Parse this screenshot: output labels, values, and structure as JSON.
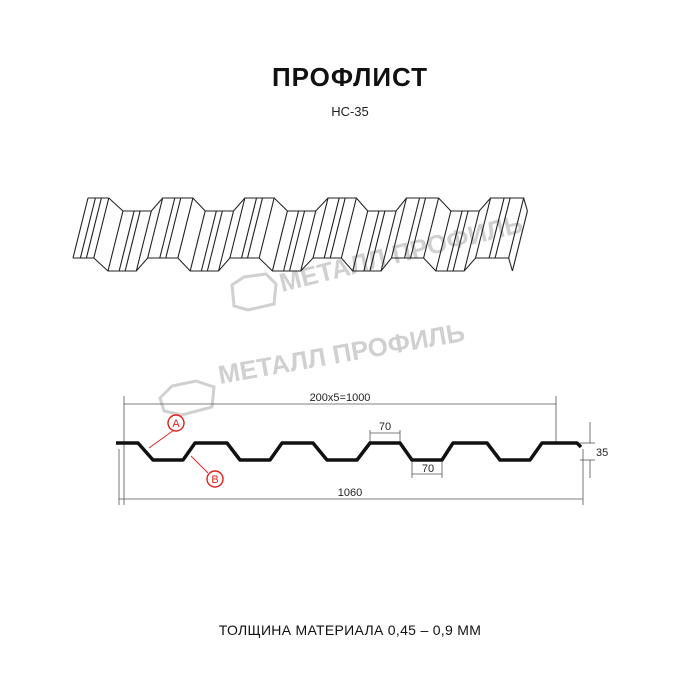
{
  "header": {
    "title": "ПРОФЛИСТ",
    "subtitle": "НС-35"
  },
  "watermark": {
    "text": "МЕТАЛЛ ПРОФИЛЬ"
  },
  "drawing": {
    "dim_cover_width": "200x5=1000",
    "dim_total_width": "1060",
    "dim_crest_width": "70",
    "dim_valley_width": "70",
    "dim_height": "35",
    "callout_a": "A",
    "callout_b": "B",
    "callout_color": "#e0201c"
  },
  "footer": {
    "thickness": "ТОЛЩИНА МАТЕРИАЛА 0,45 – 0,9 ММ"
  }
}
